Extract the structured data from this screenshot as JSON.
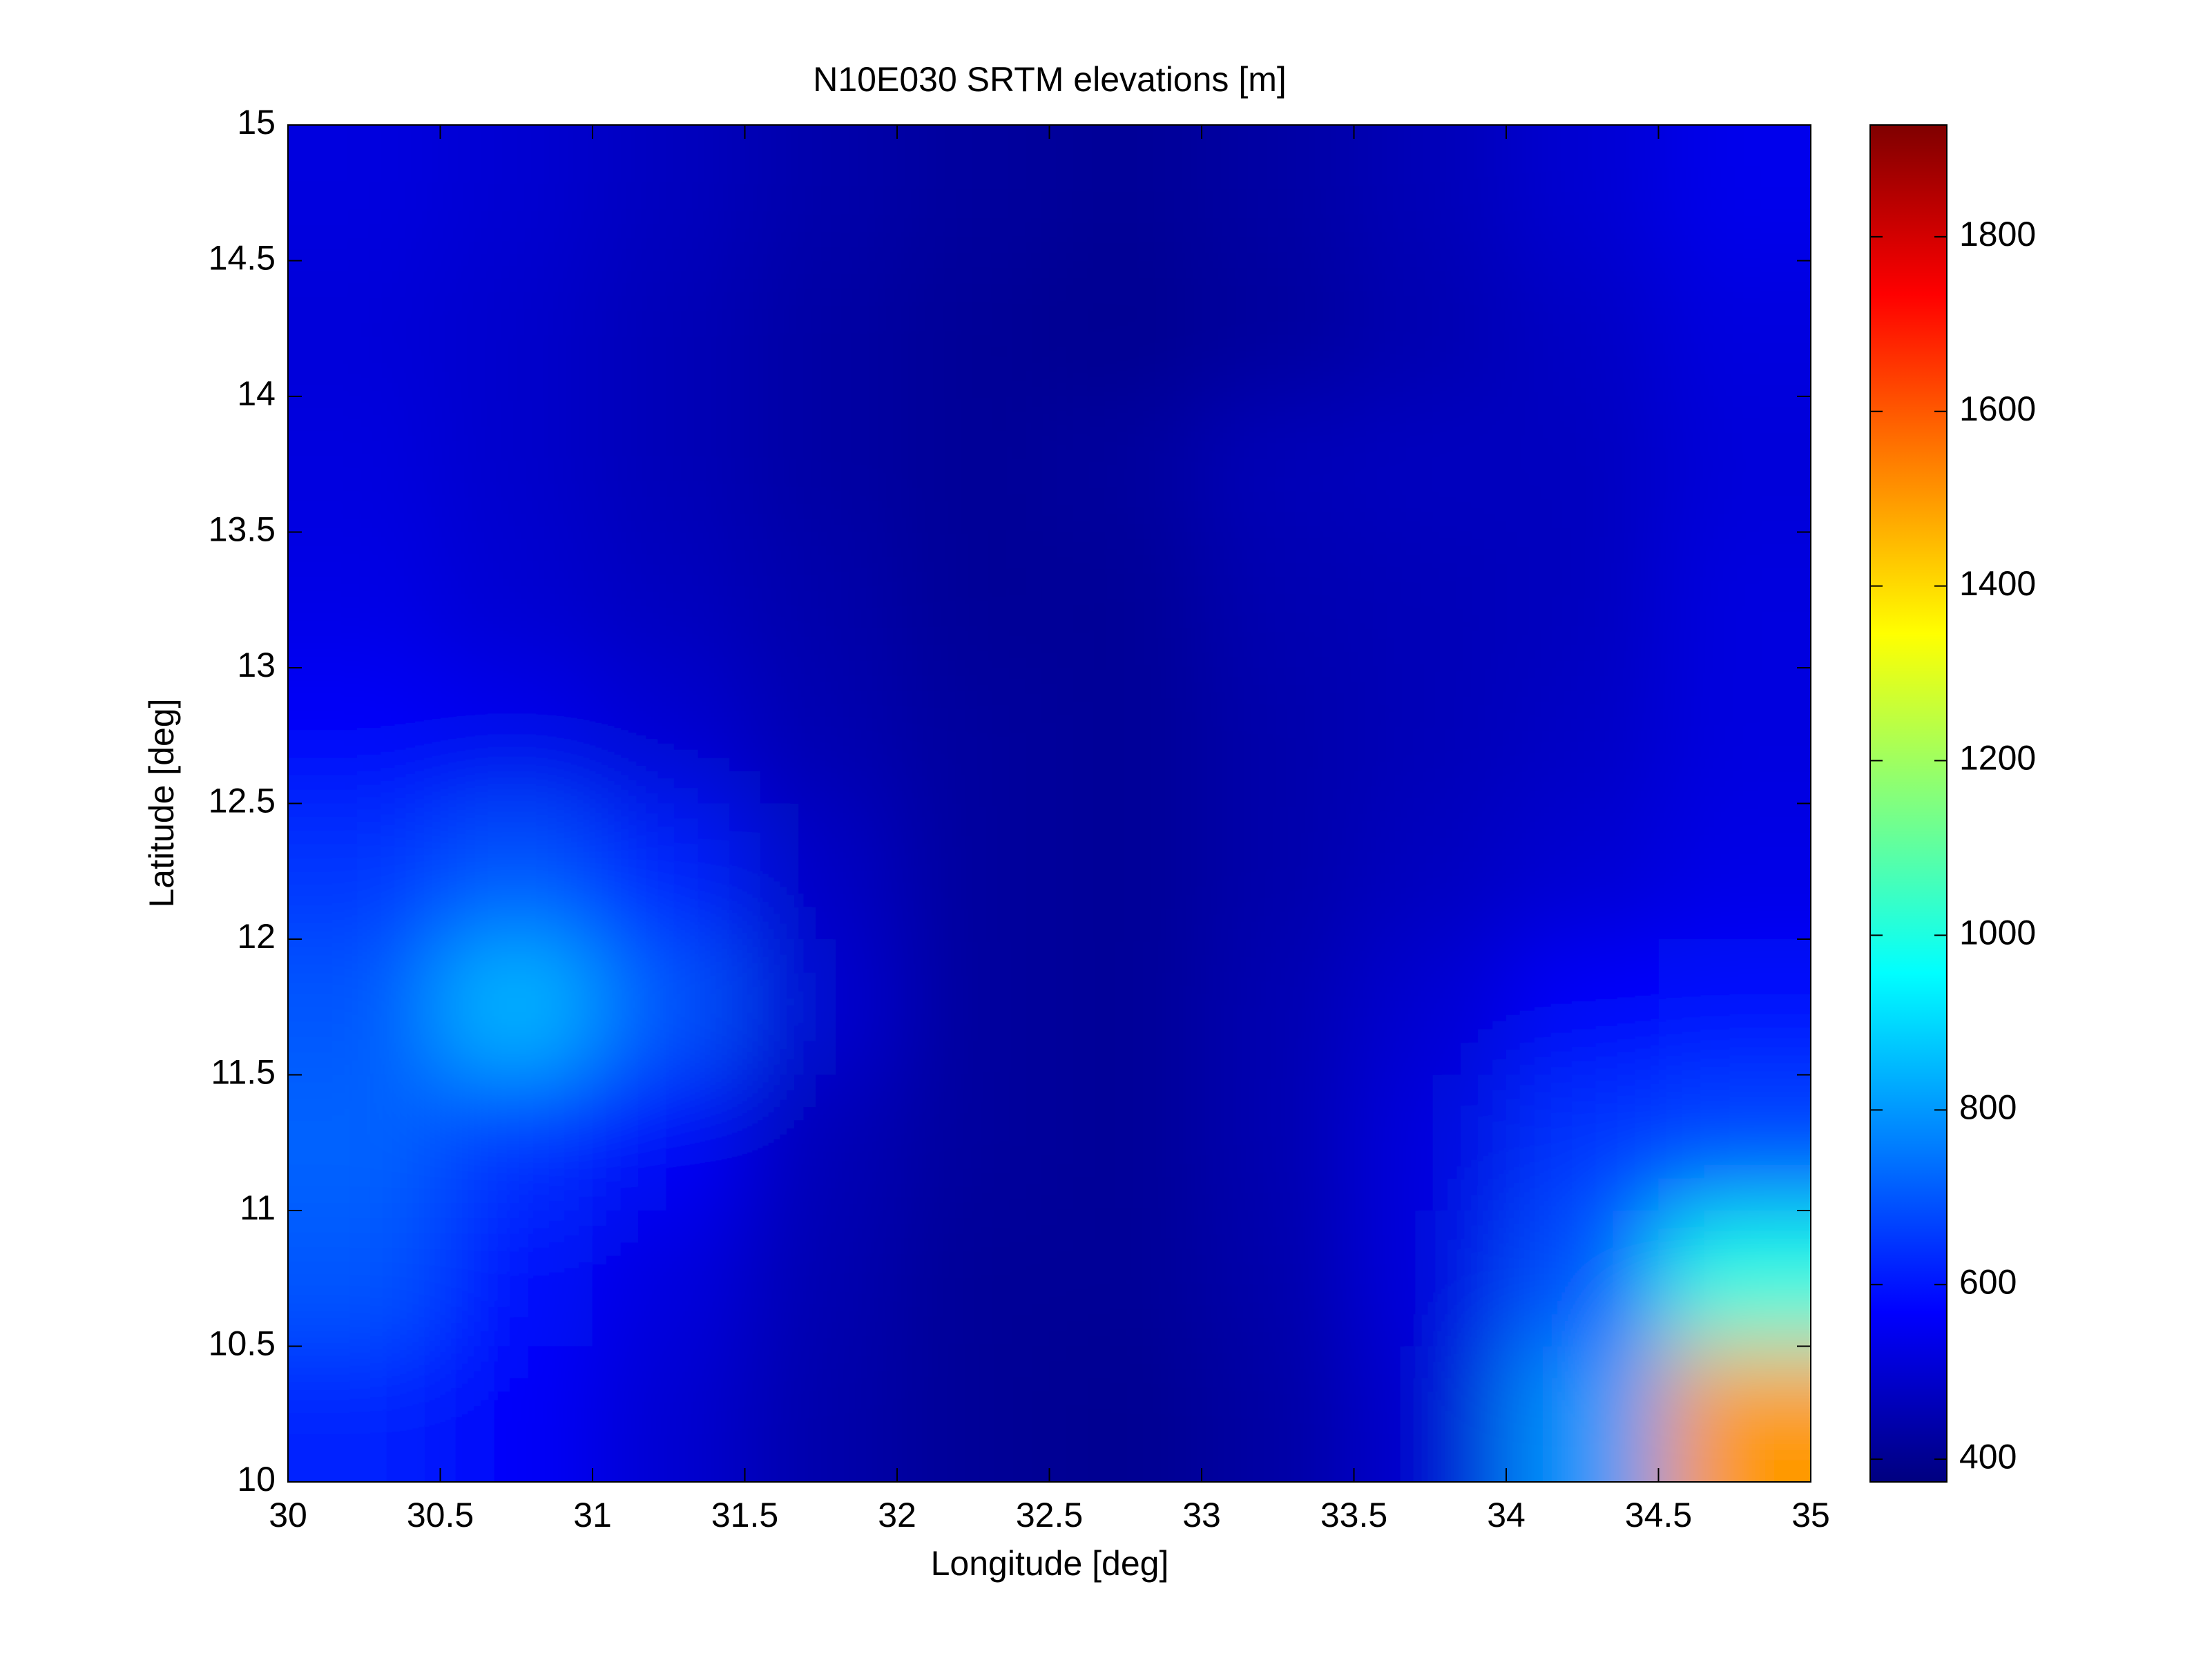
{
  "chart_data": {
    "type": "heatmap",
    "title": "N10E030 SRTM elevations [m]",
    "x_label": "Longitude [deg]",
    "y_label": "Latitude [deg]",
    "x": [
      30.25,
      30.75,
      31.25,
      31.75,
      32.25,
      32.75,
      33.25,
      33.75,
      34.25,
      34.75
    ],
    "y": [
      14.75,
      14.25,
      13.75,
      13.25,
      12.75,
      12.25,
      11.75,
      11.25,
      10.75,
      10.25
    ],
    "z": [
      [
        520,
        500,
        470,
        440,
        420,
        410,
        430,
        460,
        500,
        540
      ],
      [
        510,
        490,
        460,
        430,
        410,
        400,
        420,
        450,
        480,
        520
      ],
      [
        520,
        490,
        460,
        430,
        410,
        420,
        460,
        470,
        470,
        510
      ],
      [
        530,
        500,
        470,
        440,
        410,
        410,
        450,
        460,
        470,
        520
      ],
      [
        560,
        540,
        500,
        450,
        420,
        410,
        440,
        460,
        480,
        520
      ],
      [
        650,
        700,
        620,
        480,
        420,
        410,
        440,
        470,
        500,
        530
      ],
      [
        700,
        850,
        700,
        500,
        420,
        410,
        450,
        500,
        560,
        580
      ],
      [
        720,
        650,
        560,
        460,
        420,
        410,
        450,
        520,
        650,
        680
      ],
      [
        700,
        580,
        520,
        450,
        410,
        410,
        440,
        520,
        700,
        1000
      ],
      [
        620,
        560,
        500,
        440,
        410,
        400,
        430,
        500,
        800,
        1500
      ]
    ],
    "xlim": [
      30,
      35
    ],
    "ylim": [
      10,
      15
    ],
    "xticks": [
      30,
      30.5,
      31,
      31.5,
      32,
      32.5,
      33,
      33.5,
      34,
      34.5,
      35
    ],
    "yticks": [
      10,
      10.5,
      11,
      11.5,
      12,
      12.5,
      13,
      13.5,
      14,
      14.5,
      15
    ],
    "colormap": "jet",
    "clim": [
      374,
      1928
    ],
    "colorbar_ticks": [
      400,
      600,
      800,
      1000,
      1200,
      1400,
      1600,
      1800
    ]
  }
}
